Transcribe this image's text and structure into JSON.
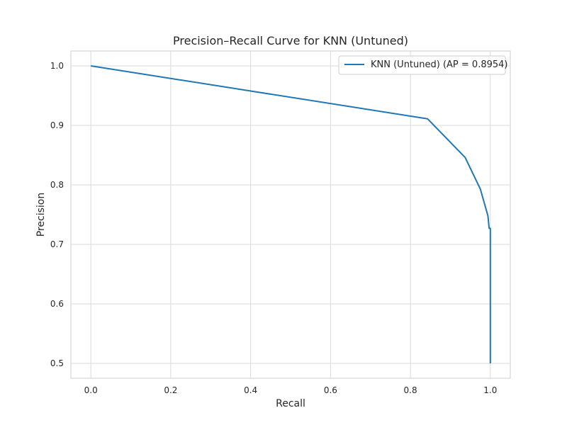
{
  "chart_data": {
    "type": "line",
    "title": "Precision–Recall Curve for KNN (Untuned)",
    "xlabel": "Recall",
    "ylabel": "Precision",
    "xlim": [
      -0.05,
      1.05
    ],
    "ylim": [
      0.475,
      1.025
    ],
    "x_ticks": [
      "0.0",
      "0.2",
      "0.4",
      "0.6",
      "0.8",
      "1.0"
    ],
    "y_ticks": [
      "0.5",
      "0.6",
      "0.7",
      "0.8",
      "0.9",
      "1.0"
    ],
    "grid": true,
    "legend_position": "top-right",
    "series": [
      {
        "name": "KNN (Untuned) (AP = 0.8954)",
        "color": "#1f77b4",
        "x": [
          0.0,
          0.843,
          0.937,
          0.975,
          0.994,
          0.997,
          1.0,
          1.0
        ],
        "y": [
          1.0,
          0.911,
          0.846,
          0.793,
          0.748,
          0.727,
          0.727,
          0.5
        ]
      }
    ]
  }
}
